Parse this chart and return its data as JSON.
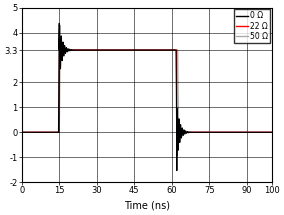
{
  "xlabel": "Time (ns)",
  "xlim": [
    0,
    100
  ],
  "ylim": [
    -2,
    5
  ],
  "yticks": [
    -2,
    -1,
    0,
    1,
    2,
    3.3,
    4,
    5
  ],
  "xticks": [
    0,
    15,
    30,
    45,
    60,
    75,
    90,
    100
  ],
  "legend_labels": [
    "0 Ω",
    "22 Ω",
    "50 Ω"
  ],
  "legend_colors": [
    "black",
    "red",
    "#aaaaaa"
  ],
  "background_color": "#ffffff",
  "rise_t": 15.0,
  "fall_t": 62.0,
  "settle_high": 3.3
}
